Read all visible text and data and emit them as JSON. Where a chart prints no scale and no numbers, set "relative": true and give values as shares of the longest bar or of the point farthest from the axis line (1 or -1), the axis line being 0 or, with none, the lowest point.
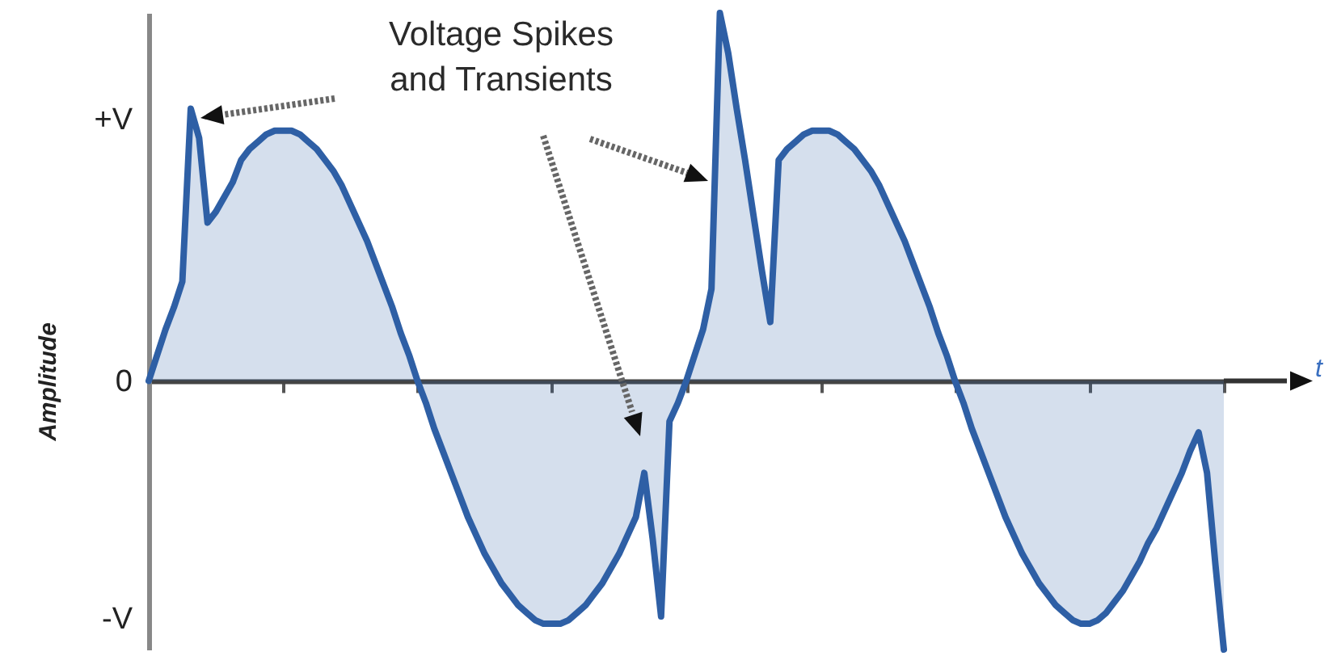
{
  "chart_data": {
    "type": "area",
    "relative": true,
    "xlabel": "t",
    "ylabel": "Amplitude",
    "categories": [
      null,
      null,
      null,
      null,
      null,
      null,
      null,
      null,
      null,
      null,
      null,
      null,
      null,
      null,
      null,
      null,
      null,
      null,
      null,
      null,
      null,
      null,
      null,
      null,
      null,
      null,
      null,
      null,
      null,
      null,
      null,
      null,
      null,
      null,
      null,
      null,
      null,
      null,
      null,
      null,
      null,
      null,
      null,
      null,
      null,
      null,
      null,
      null,
      null,
      null,
      null,
      null,
      null,
      null,
      null,
      null,
      null,
      null,
      null,
      null,
      null,
      null,
      null,
      null,
      null,
      null,
      null,
      null,
      null,
      null,
      null,
      null,
      null,
      null,
      null,
      null,
      null,
      null,
      null,
      null,
      null,
      null,
      null,
      null,
      null,
      null,
      null,
      null,
      null,
      null,
      null,
      null,
      null,
      null,
      null,
      null,
      null,
      null,
      null,
      null,
      null,
      null,
      null,
      null,
      null,
      null,
      null,
      null,
      null,
      null,
      null,
      null,
      null,
      null,
      null,
      null,
      null,
      null,
      null,
      null,
      null,
      null,
      null,
      null,
      null,
      null,
      null,
      null,
      null
    ],
    "series": [
      {
        "color": "#2e5fa5",
        "values": [
          0,
          0.07,
          0.14,
          0.2,
          0.27,
          0.74,
          0.66,
          0.43,
          0.46,
          0.5,
          0.54,
          0.6,
          0.63,
          0.65,
          0.67,
          0.68,
          0.68,
          0.68,
          0.67,
          0.65,
          0.63,
          0.6,
          0.57,
          0.53,
          0.48,
          0.43,
          0.38,
          0.32,
          0.26,
          0.2,
          0.13,
          0.07,
          0,
          -0.06,
          -0.13,
          -0.19,
          -0.25,
          -0.31,
          -0.37,
          -0.42,
          -0.47,
          -0.51,
          -0.55,
          -0.58,
          -0.61,
          -0.63,
          -0.65,
          -0.66,
          -0.66,
          -0.66,
          -0.65,
          -0.63,
          -0.61,
          -0.58,
          -0.55,
          -0.51,
          -0.47,
          -0.42,
          -0.37,
          -0.25,
          -0.43,
          -0.64,
          -0.11,
          -0.06,
          0,
          0.07,
          0.14,
          0.25,
          1,
          0.89,
          0.74,
          0.6,
          0.45,
          0.3,
          0.16,
          0.6,
          0.63,
          0.65,
          0.67,
          0.68,
          0.68,
          0.68,
          0.67,
          0.65,
          0.63,
          0.6,
          0.57,
          0.53,
          0.48,
          0.43,
          0.38,
          0.32,
          0.26,
          0.2,
          0.13,
          0.07,
          0,
          -0.06,
          -0.13,
          -0.19,
          -0.25,
          -0.31,
          -0.37,
          -0.42,
          -0.47,
          -0.51,
          -0.55,
          -0.58,
          -0.61,
          -0.63,
          -0.65,
          -0.66,
          -0.66,
          -0.65,
          -0.63,
          -0.6,
          -0.57,
          -0.53,
          -0.49,
          -0.44,
          -0.4,
          -0.35,
          -0.3,
          -0.25,
          -0.19,
          -0.14,
          -0.25,
          -0.5,
          -0.73
        ]
      }
    ],
    "annotations": [
      "Voltage Spikes and Transients",
      "+V",
      "0",
      "-V"
    ]
  }
}
